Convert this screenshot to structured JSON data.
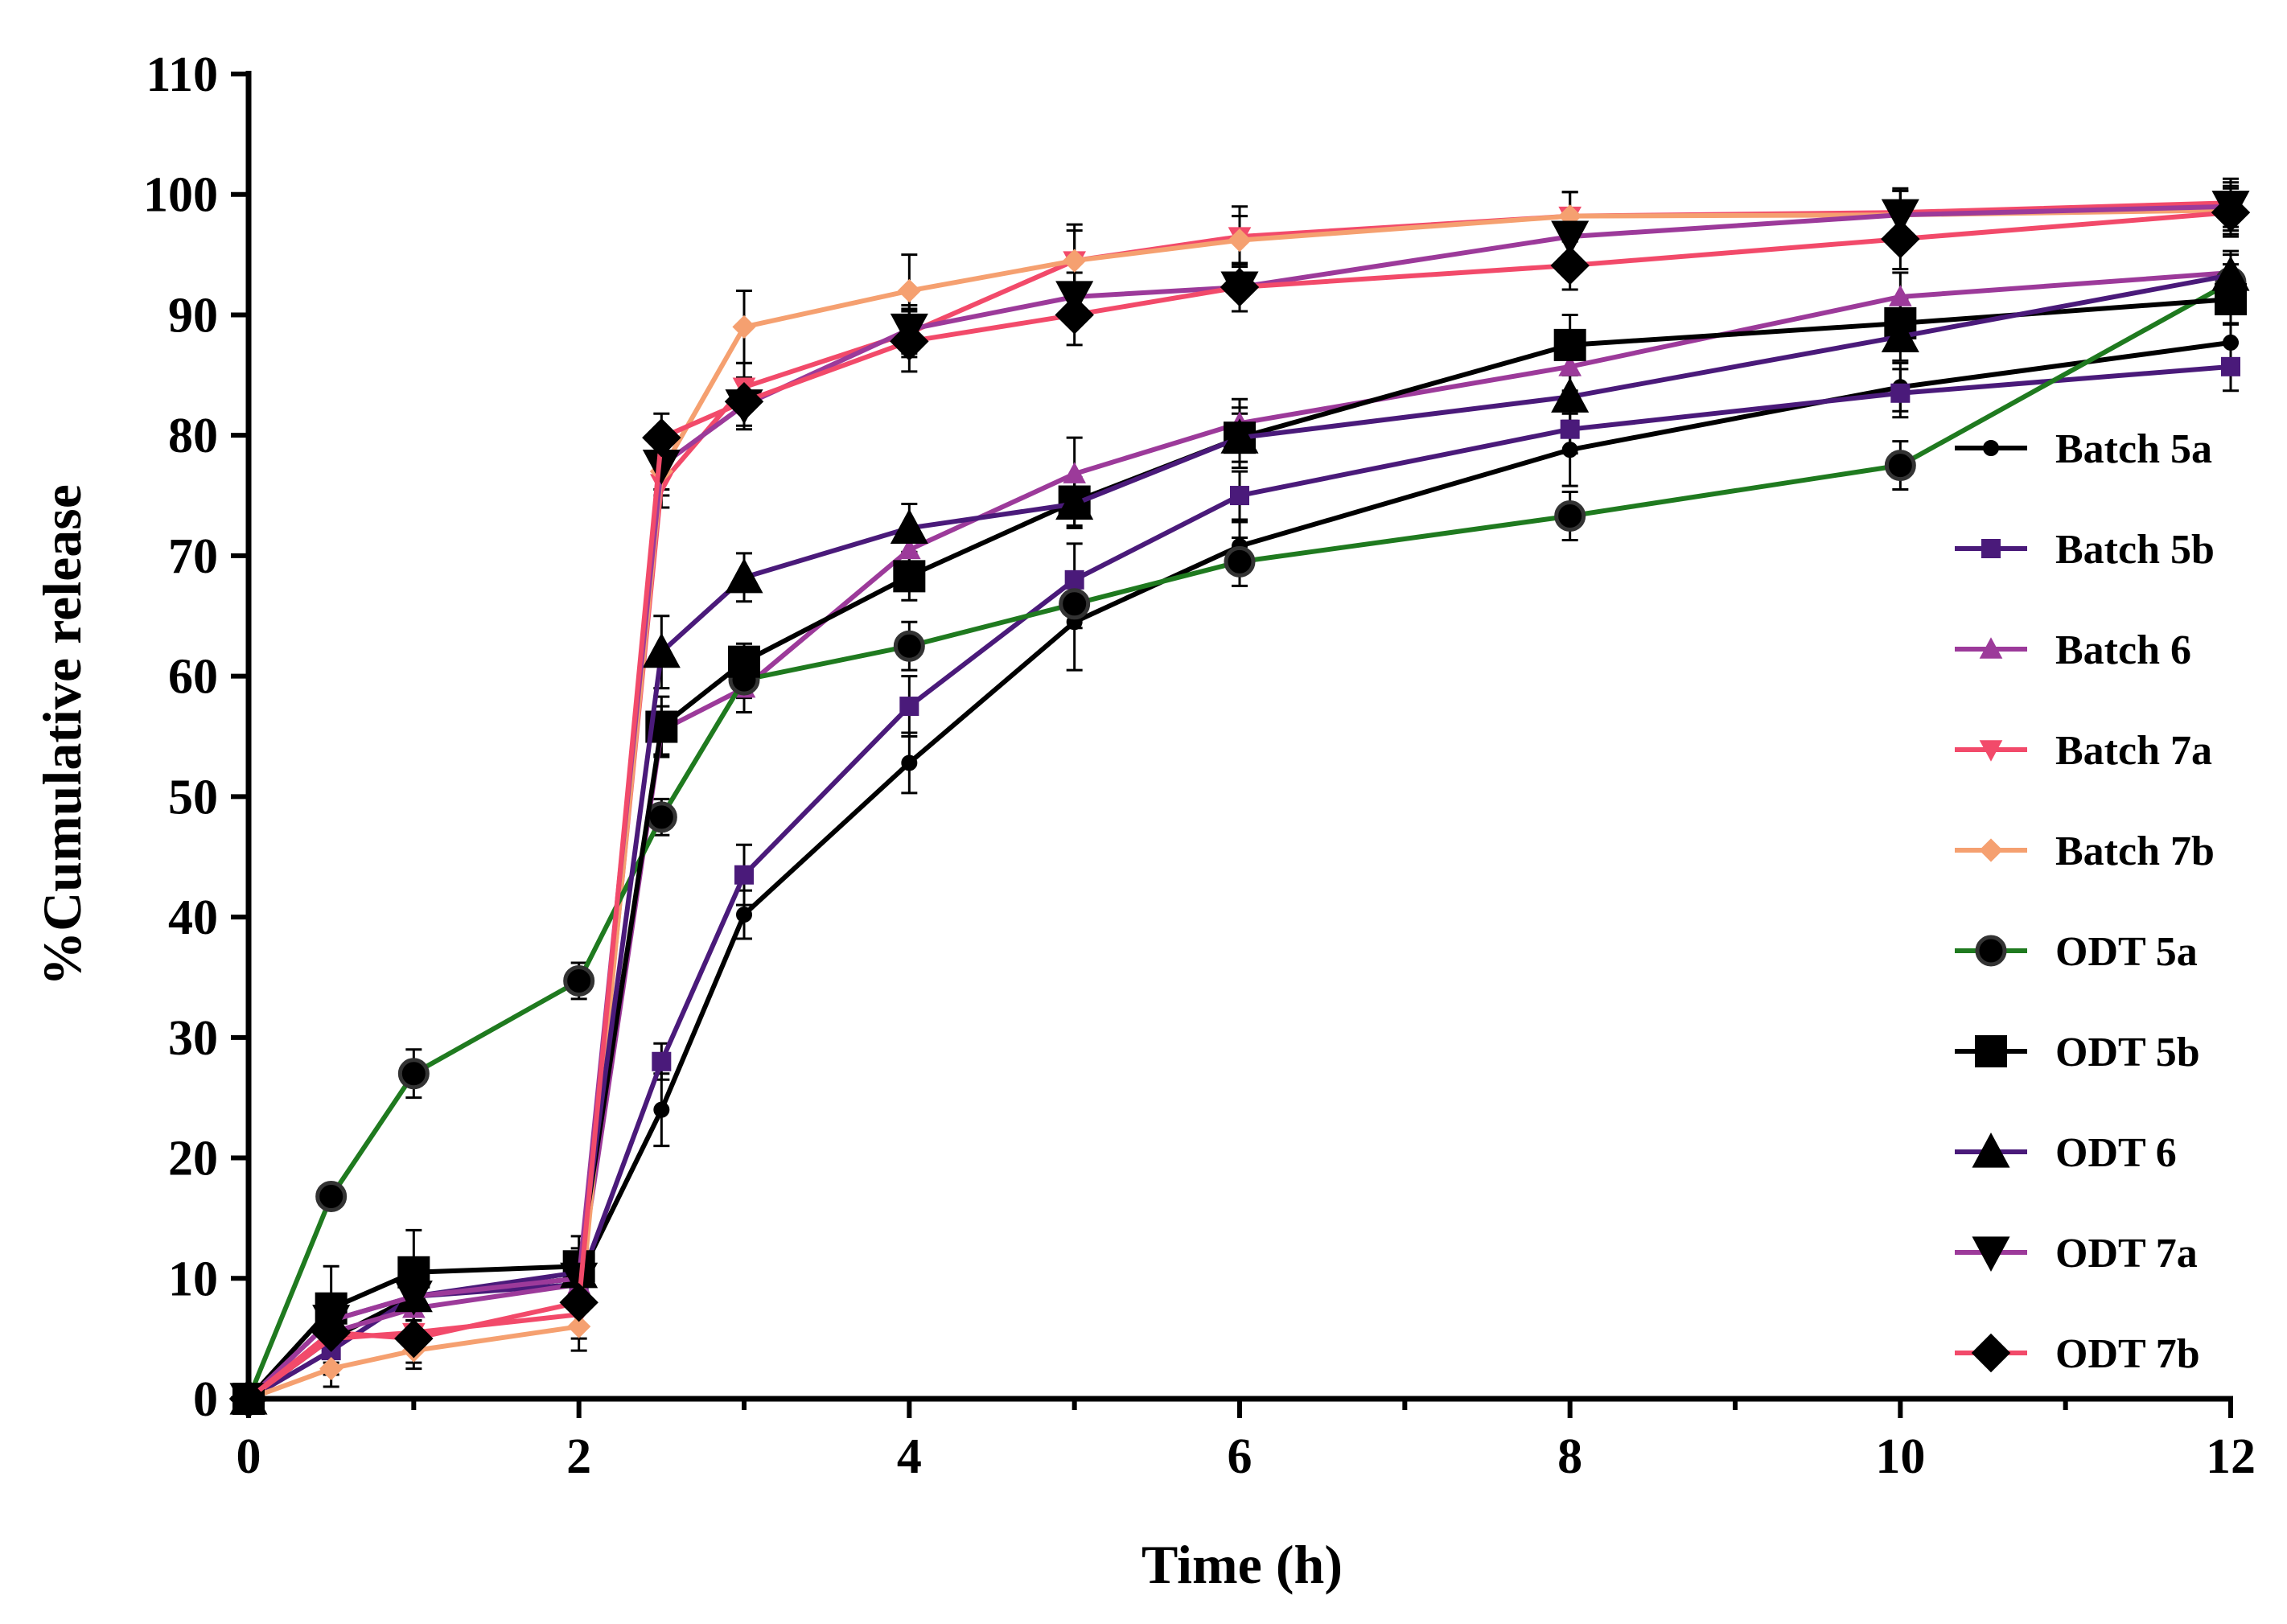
{
  "chart_data": {
    "type": "line",
    "title": "",
    "xlabel": "Time (h)",
    "ylabel": "%Cumulative release",
    "xlim": [
      0,
      12
    ],
    "ylim": [
      0,
      110
    ],
    "x_ticks": [
      "0",
      "2",
      "4",
      "6",
      "8",
      "10",
      "12"
    ],
    "y_ticks": [
      "0",
      "10",
      "20",
      "30",
      "40",
      "50",
      "60",
      "70",
      "80",
      "90",
      "100",
      "110"
    ],
    "legend_position": "right",
    "x": [
      0,
      0.5,
      1,
      2,
      2.5,
      3,
      4,
      5,
      6,
      8,
      10,
      12
    ],
    "series": [
      {
        "name": "Batch 5a",
        "color": "#000000",
        "marker": "small-circle",
        "values": [
          0,
          5,
          8.5,
          10,
          24,
          40.2,
          52.8,
          64.5,
          70.8,
          78.8,
          84,
          87.7
        ],
        "errors": [
          0,
          2,
          2,
          2,
          3,
          2,
          2.5,
          4,
          2,
          3,
          2,
          1.5
        ]
      },
      {
        "name": "Batch 5b",
        "color": "#4a1a7a",
        "marker": "small-square",
        "values": [
          0,
          4,
          8.5,
          9.5,
          28,
          43.5,
          57.5,
          68,
          75,
          80.5,
          83.5,
          85.7
        ],
        "errors": [
          0,
          2,
          2,
          2,
          1.5,
          2.5,
          2.5,
          3,
          2,
          2,
          2,
          2
        ]
      },
      {
        "name": "Batch 6",
        "color": "#9c3a9a",
        "marker": "small-triangle-up",
        "values": [
          0,
          5.5,
          7.5,
          9.5,
          55.5,
          59,
          70.5,
          76.8,
          81,
          85.7,
          91.5,
          93.5
        ],
        "errors": [
          0,
          2,
          2,
          2,
          2,
          2,
          2,
          3,
          2,
          2,
          2,
          1.5
        ]
      },
      {
        "name": "Batch 7a",
        "color": "#f24a6a",
        "marker": "small-triangle-down",
        "values": [
          0,
          5,
          5.5,
          7,
          76,
          84,
          88.5,
          94.5,
          96.5,
          98.2,
          98.5,
          99.3
        ],
        "errors": [
          0,
          1.5,
          1.5,
          2,
          2,
          2,
          2,
          2.5,
          2.5,
          2,
          2,
          2
        ]
      },
      {
        "name": "Batch 7b",
        "color": "#f5a070",
        "marker": "small-diamond",
        "values": [
          0,
          2.5,
          4,
          6,
          77,
          89,
          92,
          94.5,
          96.2,
          98.2,
          98.3,
          98.7
        ],
        "errors": [
          0,
          1.5,
          1.5,
          2,
          2,
          3,
          3,
          3,
          2,
          2,
          2,
          2
        ]
      },
      {
        "name": "ODT 5a",
        "color": "#1f7a1f",
        "marker": "circle",
        "values": [
          0,
          16.8,
          27,
          34.7,
          48.3,
          59.7,
          62.5,
          66,
          69.5,
          73.3,
          77.5,
          92.7
        ],
        "errors": [
          0,
          1,
          2,
          1.5,
          1.5,
          1.5,
          2,
          2,
          2,
          2,
          2,
          1.5
        ]
      },
      {
        "name": "ODT 5b",
        "color": "#000000",
        "marker": "square",
        "values": [
          0,
          7.5,
          10.5,
          11,
          55.8,
          61.2,
          68.3,
          74.5,
          79.8,
          87.5,
          89.3,
          91.3
        ],
        "errors": [
          0,
          3.5,
          3.5,
          2.5,
          2.5,
          1.5,
          2,
          2,
          2.5,
          2.5,
          2,
          2
        ]
      },
      {
        "name": "ODT 6",
        "color": "#4a1a7a",
        "marker": "triangle-up",
        "values": [
          0,
          6.5,
          8.5,
          10.5,
          62,
          68.2,
          72.3,
          74.3,
          79.8,
          83.2,
          88.2,
          93.3
        ],
        "errors": [
          0,
          2,
          2,
          2,
          3,
          2,
          2,
          2,
          2,
          2,
          2,
          2
        ]
      },
      {
        "name": "ODT 7a",
        "color": "#9c3a9a",
        "marker": "triangle-down",
        "values": [
          0,
          6.5,
          8.5,
          10,
          77.5,
          82.5,
          88.8,
          91.5,
          92.3,
          96.5,
          98.3,
          99
        ],
        "errors": [
          0,
          2,
          2,
          2,
          2,
          2,
          2,
          2,
          2,
          2,
          2,
          2
        ]
      },
      {
        "name": "ODT 7b",
        "color": "#f24a6a",
        "marker": "diamond",
        "values": [
          0,
          5.5,
          5,
          8,
          79.8,
          82.8,
          87.8,
          90,
          92.3,
          94.1,
          96.3,
          98.5
        ],
        "errors": [
          0,
          2,
          2,
          2,
          2,
          2,
          2.5,
          2.5,
          2,
          2,
          2.5,
          2
        ]
      }
    ]
  }
}
